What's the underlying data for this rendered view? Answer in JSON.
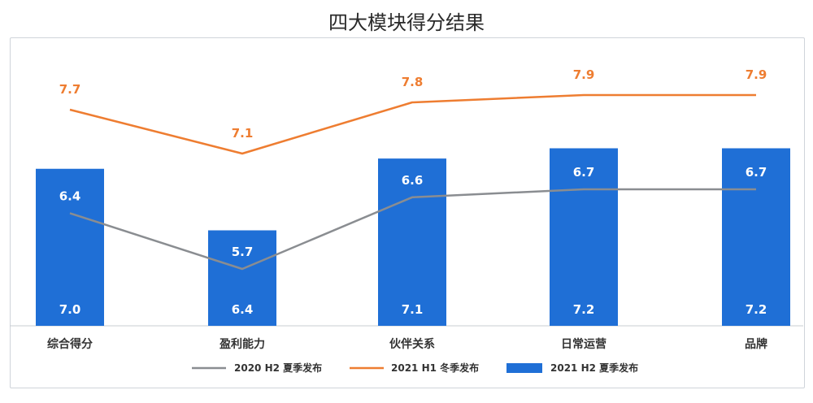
{
  "chart_data": {
    "type": "bar",
    "title": "四大模块得分结果",
    "categories": [
      "综合得分",
      "盈利能力",
      "伙伴关系",
      "日常运营",
      "品牌"
    ],
    "ylim": [
      0,
      10
    ],
    "series": [
      {
        "name": "2020 H2 夏季发布",
        "type": "line",
        "color": "#8a8d91",
        "values": [
          6.4,
          5.7,
          6.6,
          6.7,
          6.7
        ]
      },
      {
        "name": "2021 H1 冬季发布",
        "type": "line",
        "color": "#ee7d31",
        "values": [
          7.7,
          7.1,
          7.8,
          7.9,
          7.9
        ]
      },
      {
        "name": "2021 H2 夏季发布",
        "type": "bar",
        "color": "#1f6fd6",
        "values": [
          7.0,
          6.4,
          7.1,
          7.2,
          7.2
        ]
      }
    ],
    "legend_position": "bottom",
    "grid": false
  }
}
